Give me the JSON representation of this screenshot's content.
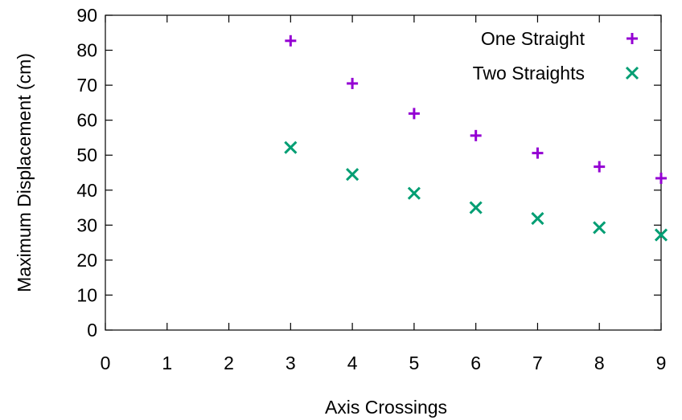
{
  "chart_data": {
    "type": "scatter",
    "xlabel": "Axis Crossings",
    "ylabel": "Maximum Displacement (cm)",
    "xlim": [
      0,
      9
    ],
    "ylim": [
      0,
      90
    ],
    "xticks": [
      0,
      1,
      2,
      3,
      4,
      5,
      6,
      7,
      8,
      9
    ],
    "yticks": [
      0,
      10,
      20,
      30,
      40,
      50,
      60,
      70,
      80,
      90
    ],
    "grid": false,
    "legend_position": "top-right",
    "series": [
      {
        "name": "One Straight",
        "marker": "plus",
        "color": "#9400d3",
        "x": [
          3,
          4,
          5,
          6,
          7,
          8,
          9
        ],
        "y": [
          82.7,
          70.5,
          61.9,
          55.6,
          50.6,
          46.7,
          43.4
        ]
      },
      {
        "name": "Two Straights",
        "marker": "cross",
        "color": "#009e73",
        "x": [
          3,
          4,
          5,
          6,
          7,
          8,
          9
        ],
        "y": [
          52.2,
          44.5,
          39.1,
          35.0,
          31.9,
          29.3,
          27.2
        ]
      }
    ]
  }
}
